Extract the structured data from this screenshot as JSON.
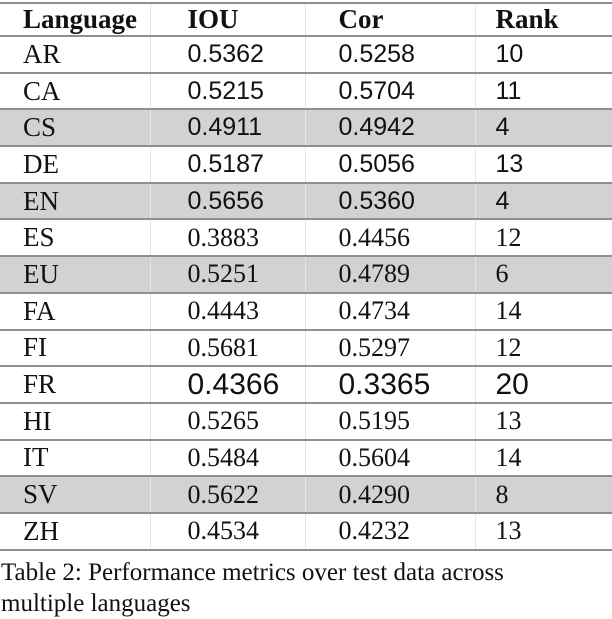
{
  "table": {
    "headers": [
      "Language",
      "IOU",
      "Cor",
      "Rank"
    ],
    "rows": [
      {
        "language": "AR",
        "iou": "0.5362",
        "cor": "0.5258",
        "rank": "10",
        "shaded": false,
        "num_font": "sans"
      },
      {
        "language": "CA",
        "iou": "0.5215",
        "cor": "0.5704",
        "rank": "11",
        "shaded": false,
        "num_font": "sans"
      },
      {
        "language": "CS",
        "iou": "0.4911",
        "cor": "0.4942",
        "rank": "4",
        "shaded": true,
        "num_font": "sans"
      },
      {
        "language": "DE",
        "iou": "0.5187",
        "cor": "0.5056",
        "rank": "13",
        "shaded": false,
        "num_font": "sans"
      },
      {
        "language": "EN",
        "iou": "0.5656",
        "cor": "0.5360",
        "rank": "4",
        "shaded": true,
        "num_font": "sans"
      },
      {
        "language": "ES",
        "iou": "0.3883",
        "cor": "0.4456",
        "rank": "12",
        "shaded": false,
        "num_font": "serif"
      },
      {
        "language": "EU",
        "iou": "0.5251",
        "cor": "0.4789",
        "rank": "6",
        "shaded": true,
        "num_font": "serif"
      },
      {
        "language": "FA",
        "iou": "0.4443",
        "cor": "0.4734",
        "rank": "14",
        "shaded": false,
        "num_font": "serif"
      },
      {
        "language": "FI",
        "iou": "0.5681",
        "cor": "0.5297",
        "rank": "12",
        "shaded": false,
        "num_font": "serif"
      },
      {
        "language": "FR",
        "iou": "0.4366",
        "cor": "0.3365",
        "rank": "20",
        "shaded": false,
        "num_font": "sans-large"
      },
      {
        "language": "HI",
        "iou": "0.5265",
        "cor": "0.5195",
        "rank": "13",
        "shaded": false,
        "num_font": "serif"
      },
      {
        "language": "IT",
        "iou": "0.5484",
        "cor": "0.5604",
        "rank": "14",
        "shaded": false,
        "num_font": "serif"
      },
      {
        "language": "SV",
        "iou": "0.5622",
        "cor": "0.4290",
        "rank": "8",
        "shaded": true,
        "num_font": "serif"
      },
      {
        "language": "ZH",
        "iou": "0.4534",
        "cor": "0.4232",
        "rank": "13",
        "shaded": false,
        "num_font": "serif"
      }
    ],
    "colors": {
      "shaded_row": "#d2d2d2",
      "rule": "#8f8f8f"
    }
  },
  "caption": {
    "line1": "Table 2: Performance metrics over test data across",
    "line2": "multiple languages"
  }
}
